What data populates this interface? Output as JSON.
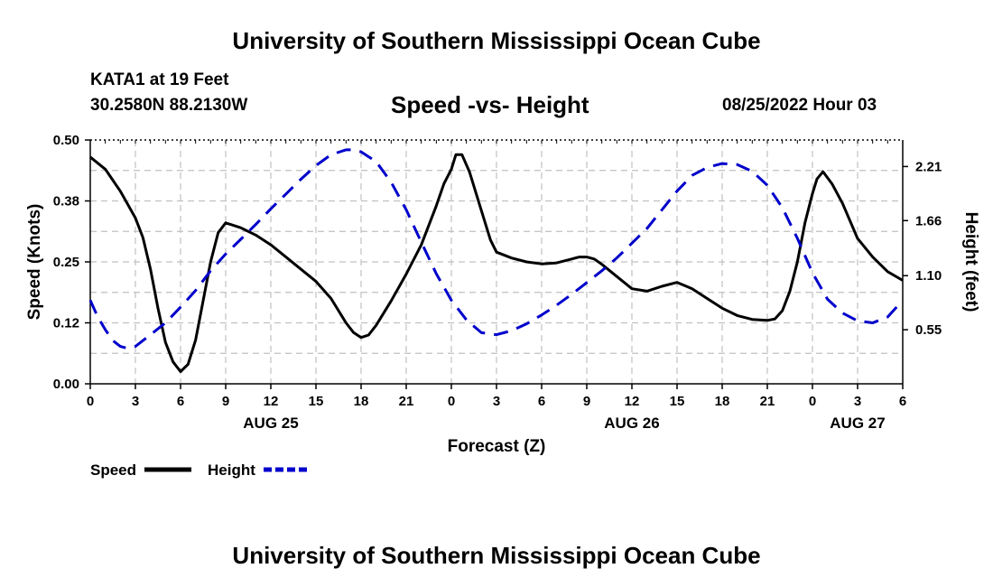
{
  "page": {
    "title": "University of Southern Mississippi Ocean Cube",
    "footer_title": "University of Southern Mississippi Ocean Cube",
    "station": "KATA1 at 19 Feet",
    "coordinates": "30.2580N  88.2130W",
    "subtitle": "Speed -vs- Height",
    "datetime": "08/25/2022 Hour 03"
  },
  "chart_data": {
    "type": "line",
    "title": "Speed -vs- Height",
    "xlabel": "Forecast (Z)",
    "ylabel_left": "Speed (Knots)",
    "ylabel_right": "Height (feet)",
    "x_range_hours": [
      0,
      54
    ],
    "x_tick_hours": [
      0,
      3,
      6,
      9,
      12,
      15,
      18,
      21,
      24,
      27,
      30,
      33,
      36,
      39,
      42,
      45,
      48,
      51,
      54
    ],
    "x_tick_labels": [
      "0",
      "3",
      "6",
      "9",
      "12",
      "15",
      "18",
      "21",
      "0",
      "3",
      "6",
      "9",
      "12",
      "15",
      "18",
      "21",
      "0",
      "3",
      "6"
    ],
    "date_labels": [
      {
        "hour": 12,
        "label": "AUG 25"
      },
      {
        "hour": 36,
        "label": "AUG 26"
      },
      {
        "hour": 51,
        "label": "AUG 27"
      }
    ],
    "y_left": {
      "range": [
        0,
        0.5
      ],
      "ticks": [
        0.0,
        0.125,
        0.25,
        0.375,
        0.5
      ],
      "tick_labels": [
        "0.00",
        "0.12",
        "0.25",
        "0.38",
        "0.50"
      ]
    },
    "y_right": {
      "range": [
        0,
        2.48
      ],
      "ticks": [
        0.55,
        1.1,
        1.66,
        2.21
      ],
      "tick_labels": [
        "0.55",
        "1.10",
        "1.66",
        "2.21"
      ]
    },
    "grid": true,
    "legend": {
      "position": "bottom-left",
      "entries": [
        "Speed",
        "Height"
      ]
    },
    "series": [
      {
        "name": "Speed",
        "axis": "left",
        "color": "#000000",
        "dash": "solid",
        "points": [
          [
            0,
            0.465
          ],
          [
            1,
            0.44
          ],
          [
            2,
            0.395
          ],
          [
            3,
            0.34
          ],
          [
            3.5,
            0.3
          ],
          [
            4,
            0.235
          ],
          [
            4.5,
            0.155
          ],
          [
            5,
            0.085
          ],
          [
            5.5,
            0.045
          ],
          [
            6,
            0.025
          ],
          [
            6.5,
            0.04
          ],
          [
            7,
            0.09
          ],
          [
            7.5,
            0.17
          ],
          [
            8,
            0.25
          ],
          [
            8.5,
            0.31
          ],
          [
            9,
            0.33
          ],
          [
            10,
            0.32
          ],
          [
            11,
            0.305
          ],
          [
            12,
            0.285
          ],
          [
            13,
            0.26
          ],
          [
            14,
            0.235
          ],
          [
            15,
            0.21
          ],
          [
            16,
            0.175
          ],
          [
            17,
            0.125
          ],
          [
            17.5,
            0.105
          ],
          [
            18,
            0.095
          ],
          [
            18.5,
            0.1
          ],
          [
            19,
            0.12
          ],
          [
            20,
            0.17
          ],
          [
            21,
            0.225
          ],
          [
            22,
            0.285
          ],
          [
            23,
            0.365
          ],
          [
            23.5,
            0.41
          ],
          [
            24,
            0.44
          ],
          [
            24.3,
            0.47
          ],
          [
            24.7,
            0.47
          ],
          [
            25.2,
            0.435
          ],
          [
            26,
            0.355
          ],
          [
            26.6,
            0.295
          ],
          [
            27,
            0.27
          ],
          [
            28,
            0.258
          ],
          [
            29,
            0.25
          ],
          [
            30,
            0.246
          ],
          [
            31,
            0.248
          ],
          [
            32,
            0.256
          ],
          [
            32.5,
            0.26
          ],
          [
            33,
            0.26
          ],
          [
            33.5,
            0.256
          ],
          [
            34,
            0.245
          ],
          [
            35,
            0.22
          ],
          [
            36,
            0.195
          ],
          [
            37,
            0.19
          ],
          [
            38,
            0.2
          ],
          [
            39,
            0.208
          ],
          [
            40,
            0.195
          ],
          [
            41,
            0.175
          ],
          [
            42,
            0.155
          ],
          [
            43,
            0.14
          ],
          [
            44,
            0.132
          ],
          [
            45,
            0.13
          ],
          [
            45.5,
            0.133
          ],
          [
            46,
            0.15
          ],
          [
            46.5,
            0.19
          ],
          [
            47,
            0.25
          ],
          [
            47.5,
            0.33
          ],
          [
            48,
            0.39
          ],
          [
            48.3,
            0.42
          ],
          [
            48.7,
            0.435
          ],
          [
            49.3,
            0.41
          ],
          [
            50,
            0.37
          ],
          [
            51,
            0.298
          ],
          [
            52,
            0.26
          ],
          [
            53,
            0.23
          ],
          [
            54,
            0.212
          ]
        ]
      },
      {
        "name": "Height",
        "axis": "right",
        "color": "#0000cc",
        "dash": "dashed",
        "points": [
          [
            0,
            0.85
          ],
          [
            0.5,
            0.68
          ],
          [
            1,
            0.55
          ],
          [
            1.5,
            0.44
          ],
          [
            2,
            0.38
          ],
          [
            2.5,
            0.36
          ],
          [
            3,
            0.38
          ],
          [
            4,
            0.5
          ],
          [
            5,
            0.62
          ],
          [
            6,
            0.78
          ],
          [
            7,
            0.95
          ],
          [
            8,
            1.15
          ],
          [
            9,
            1.32
          ],
          [
            10,
            1.47
          ],
          [
            11,
            1.62
          ],
          [
            12,
            1.78
          ],
          [
            13,
            1.93
          ],
          [
            14,
            2.08
          ],
          [
            15,
            2.22
          ],
          [
            16,
            2.33
          ],
          [
            17,
            2.38
          ],
          [
            17.5,
            2.38
          ],
          [
            18,
            2.36
          ],
          [
            19,
            2.26
          ],
          [
            20,
            2.05
          ],
          [
            21,
            1.77
          ],
          [
            22,
            1.44
          ],
          [
            23,
            1.12
          ],
          [
            24,
            0.85
          ],
          [
            25,
            0.65
          ],
          [
            26,
            0.52
          ],
          [
            27,
            0.5
          ],
          [
            28,
            0.54
          ],
          [
            29,
            0.61
          ],
          [
            30,
            0.7
          ],
          [
            31,
            0.8
          ],
          [
            32,
            0.91
          ],
          [
            33,
            1.03
          ],
          [
            34,
            1.15
          ],
          [
            35,
            1.28
          ],
          [
            36,
            1.43
          ],
          [
            37,
            1.58
          ],
          [
            38,
            1.77
          ],
          [
            39,
            1.96
          ],
          [
            40,
            2.12
          ],
          [
            41,
            2.2
          ],
          [
            42,
            2.24
          ],
          [
            43,
            2.23
          ],
          [
            44,
            2.16
          ],
          [
            45,
            2.02
          ],
          [
            46,
            1.79
          ],
          [
            47,
            1.48
          ],
          [
            48,
            1.13
          ],
          [
            49,
            0.86
          ],
          [
            50,
            0.72
          ],
          [
            51,
            0.64
          ],
          [
            52,
            0.62
          ],
          [
            53,
            0.68
          ],
          [
            54,
            0.85
          ]
        ]
      }
    ]
  }
}
